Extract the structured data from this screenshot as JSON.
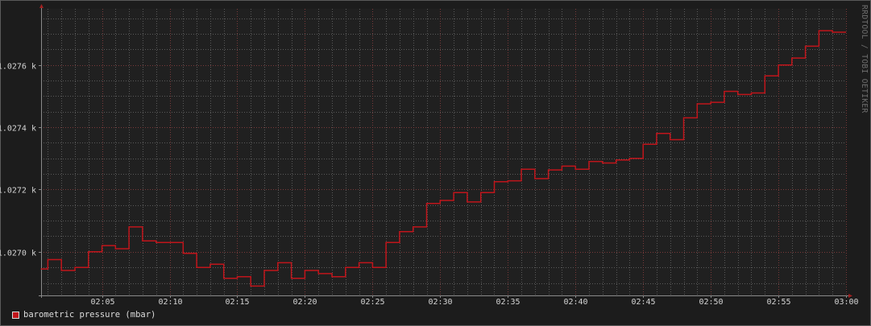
{
  "watermark": "RRDTOOL / TOBI OETIKER",
  "colors": {
    "background": "#1c1c1c",
    "canvas": "#202020",
    "major_grid": "#7a3a3a",
    "minor_grid": "#5a5a5a",
    "series": "#c0151b",
    "axis": "#8a8a8a",
    "text": "#d4d4d4"
  },
  "chart_data": {
    "type": "line",
    "title": "",
    "xlabel": "",
    "ylabel": "",
    "x_range": [
      "02:00:30",
      "03:00"
    ],
    "ylim": [
      1026.86,
      1027.78
    ],
    "grid": true,
    "legend_position": "bottom-left",
    "x_ticks": [
      "02:05",
      "02:10",
      "02:15",
      "02:20",
      "02:25",
      "02:30",
      "02:35",
      "02:40",
      "02:45",
      "02:50",
      "02:55",
      "03:00"
    ],
    "y_ticks": [
      {
        "value": 1027.0,
        "label": "1.0270 k"
      },
      {
        "value": 1027.2,
        "label": "1.0272 k"
      },
      {
        "value": 1027.4,
        "label": "1.0274 k"
      },
      {
        "value": 1027.6,
        "label": "1.0276 k"
      }
    ],
    "series": [
      {
        "name": "barometric pressure (mbar)",
        "step": "post",
        "x": [
          "02:00:30",
          "02:01",
          "02:02",
          "02:03",
          "02:04",
          "02:05",
          "02:06",
          "02:07",
          "02:08",
          "02:09",
          "02:10",
          "02:11",
          "02:12",
          "02:13",
          "02:14",
          "02:15",
          "02:16",
          "02:17",
          "02:18",
          "02:19",
          "02:20",
          "02:21",
          "02:22",
          "02:23",
          "02:24",
          "02:25",
          "02:26",
          "02:27",
          "02:28",
          "02:29",
          "02:30",
          "02:31",
          "02:32",
          "02:33",
          "02:34",
          "02:35",
          "02:36",
          "02:37",
          "02:38",
          "02:39",
          "02:40",
          "02:41",
          "02:42",
          "02:43",
          "02:44",
          "02:45",
          "02:46",
          "02:47",
          "02:48",
          "02:49",
          "02:50",
          "02:51",
          "02:52",
          "02:53",
          "02:54",
          "02:55",
          "02:56",
          "02:57",
          "02:58",
          "02:59"
        ],
        "values": [
          1026.945,
          1026.975,
          1026.94,
          1026.95,
          1027.0,
          1027.02,
          1027.01,
          1027.08,
          1027.035,
          1027.03,
          1027.03,
          1026.995,
          1026.95,
          1026.96,
          1026.915,
          1026.92,
          1026.89,
          1026.94,
          1026.965,
          1026.915,
          1026.94,
          1026.93,
          1026.92,
          1026.95,
          1026.965,
          1026.95,
          1027.03,
          1027.065,
          1027.08,
          1027.155,
          1027.165,
          1027.19,
          1027.16,
          1027.19,
          1027.225,
          1027.228,
          1027.265,
          1027.235,
          1027.263,
          1027.275,
          1027.265,
          1027.29,
          1027.285,
          1027.295,
          1027.3,
          1027.345,
          1027.38,
          1027.36,
          1027.43,
          1027.475,
          1027.48,
          1027.515,
          1027.505,
          1027.51,
          1027.565,
          1027.6,
          1027.622,
          1027.66,
          1027.71,
          1027.705
        ]
      }
    ]
  },
  "legend": {
    "items": [
      {
        "label": "barometric pressure (mbar)",
        "color": "#c0151b"
      }
    ]
  }
}
